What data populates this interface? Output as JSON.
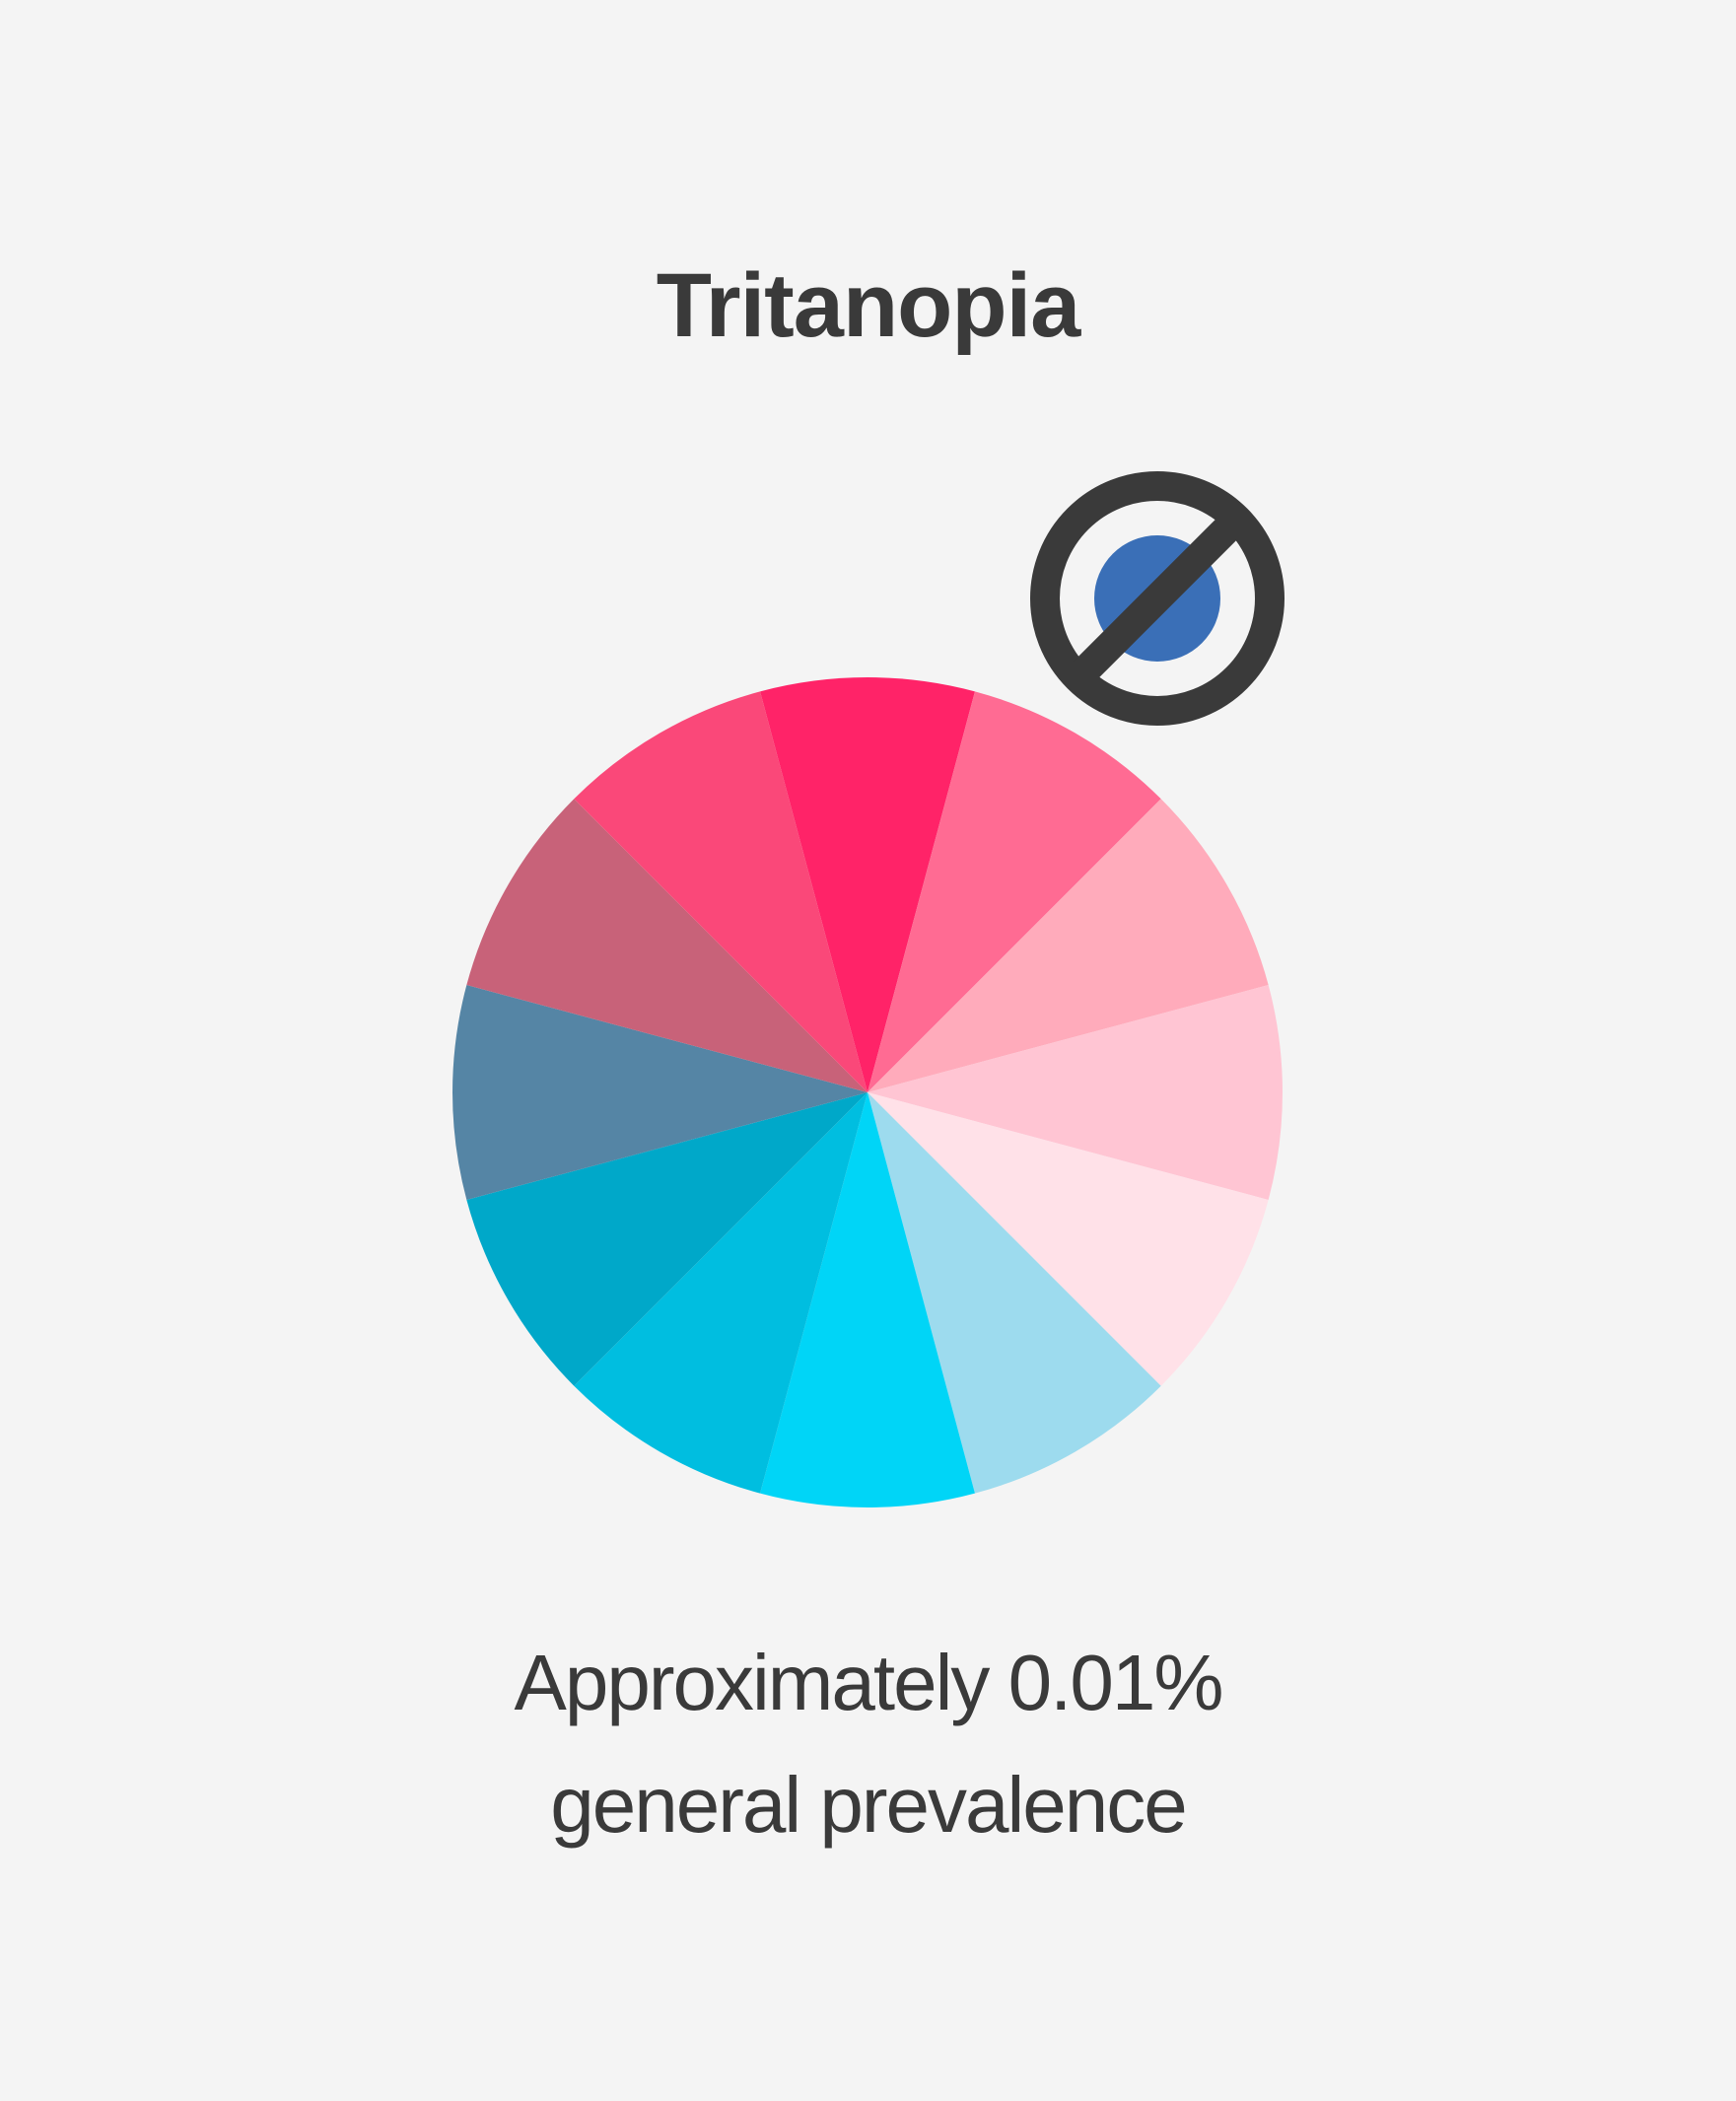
{
  "title": "Tritanopia",
  "caption": {
    "line1": "Approximately 0.01%",
    "line2": "general prevalence"
  },
  "icon": {
    "name": "no-blue-icon",
    "ring_color": "#3a3a3a",
    "dot_color": "#3a6fb7"
  },
  "color_wheel": {
    "segments": [
      "#ff2368",
      "#ff6b93",
      "#ffabbb",
      "#ffc5d3",
      "#ffe1e8",
      "#9ddbee",
      "#00d5f7",
      "#00bee0",
      "#00a8c9",
      "#5585a5",
      "#c86279",
      "#fa4879"
    ]
  }
}
